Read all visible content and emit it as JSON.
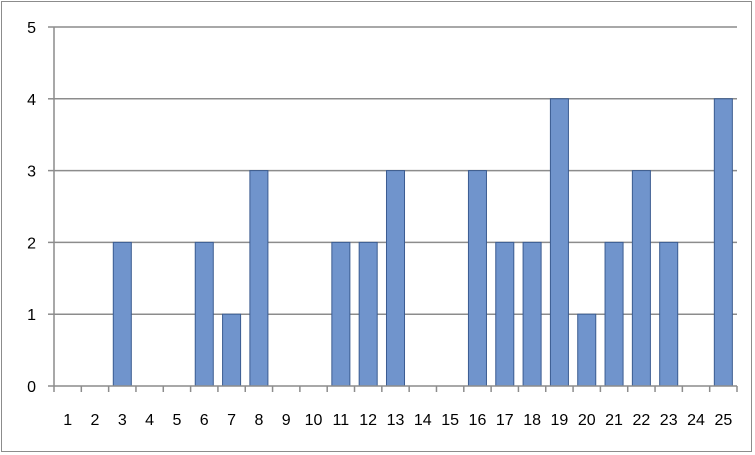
{
  "chart_data": {
    "type": "bar",
    "title": "",
    "xlabel": "",
    "ylabel": "",
    "categories": [
      "1",
      "2",
      "3",
      "4",
      "5",
      "6",
      "7",
      "8",
      "9",
      "10",
      "11",
      "12",
      "13",
      "14",
      "15",
      "16",
      "17",
      "18",
      "19",
      "20",
      "21",
      "22",
      "23",
      "24",
      "25"
    ],
    "values": [
      0,
      0,
      2,
      0,
      0,
      2,
      1,
      3,
      0,
      0,
      2,
      2,
      3,
      0,
      0,
      3,
      2,
      2,
      4,
      1,
      2,
      3,
      2,
      0,
      4
    ],
    "ylim": [
      0,
      5
    ],
    "yticks": [
      "0",
      "1",
      "2",
      "3",
      "4",
      "5"
    ],
    "grid": true,
    "legend": "none",
    "colors": {
      "bar_fill": "#7094cc",
      "bar_stroke": "#3b5c91",
      "grid": "#8c8c8c",
      "axis": "#8c8c8c"
    }
  }
}
